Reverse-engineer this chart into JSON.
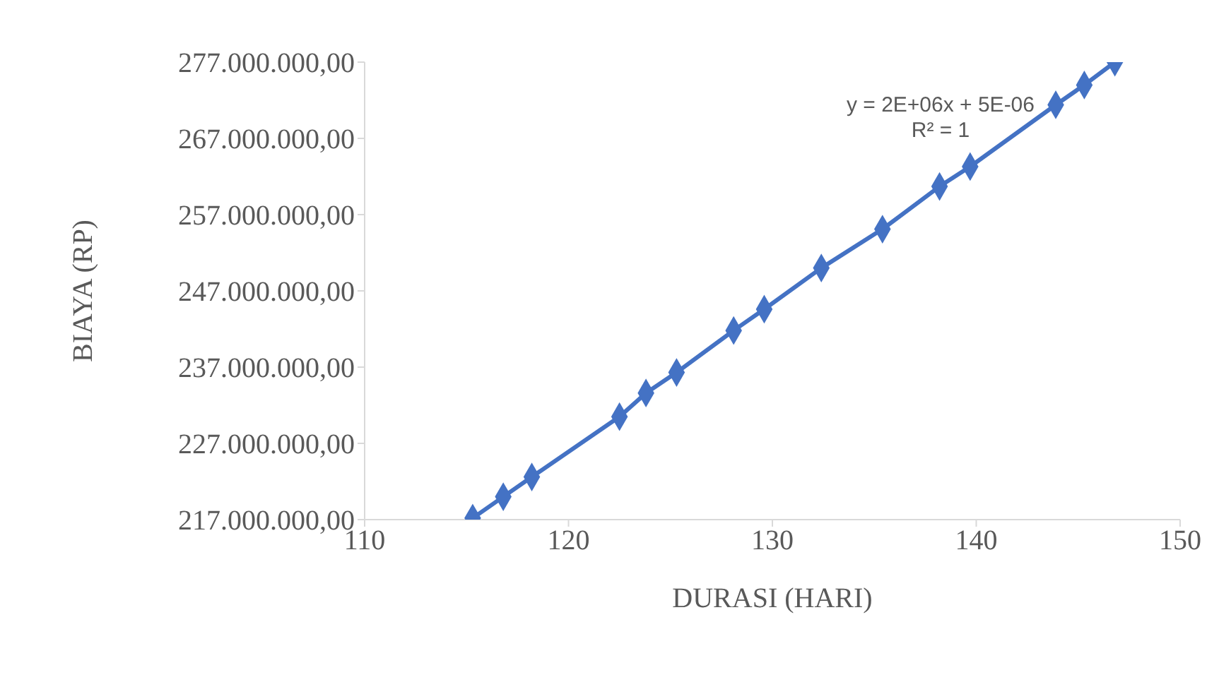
{
  "chart_data": {
    "type": "line",
    "xlabel": "DURASI  (HARI)",
    "ylabel": "BIAYA  (RP)",
    "x": [
      115.3,
      116.8,
      118.2,
      122.5,
      123.8,
      125.3,
      128.1,
      129.6,
      132.4,
      135.4,
      138.2,
      139.7,
      143.9,
      145.3,
      146.8
    ],
    "series": [
      {
        "color": "#4472c4",
        "values": [
          217200000,
          220000000,
          222600000,
          230500000,
          233600000,
          236300000,
          241800000,
          244600000,
          250000000,
          255100000,
          260700000,
          263300000,
          271400000,
          274000000,
          277000000
        ]
      }
    ],
    "xlim": [
      110,
      150
    ],
    "xticks": [
      110,
      120,
      130,
      140,
      150
    ],
    "ylim": [
      217000000,
      277000000
    ],
    "yticks": [
      {
        "value": 217000000,
        "label": "217.000.000,00"
      },
      {
        "value": 227000000,
        "label": "227.000.000,00"
      },
      {
        "value": 237000000,
        "label": "237.000.000,00"
      },
      {
        "value": 247000000,
        "label": "247.000.000,00"
      },
      {
        "value": 257000000,
        "label": "257.000.000,00"
      },
      {
        "value": 267000000,
        "label": "267.000.000,00"
      },
      {
        "value": 277000000,
        "label": "277.000.000,00"
      }
    ],
    "annotations": [
      "y = 2E+06x + 5E-06",
      "R² = 1"
    ],
    "grid": false,
    "legend": false,
    "marker": "diamond",
    "line_style": "solid"
  }
}
